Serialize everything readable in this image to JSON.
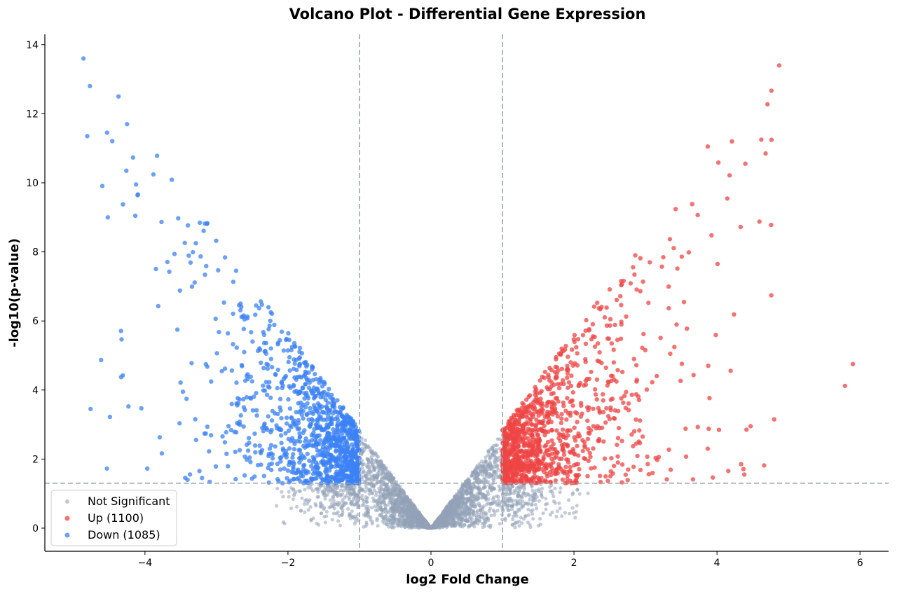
{
  "chart_data": {
    "type": "scatter",
    "title": "Volcano Plot - Differential Gene Expression",
    "xlabel": "log2 Fold Change",
    "ylabel": "-log10(p-value)",
    "xlim": [
      -5.4,
      6.4
    ],
    "ylim": [
      -0.67,
      14.3
    ],
    "xticks": [
      -4,
      -2,
      0,
      2,
      4,
      6
    ],
    "yticks": [
      0,
      2,
      4,
      6,
      8,
      10,
      12,
      14
    ],
    "grid": false,
    "legend_position": "lower-left",
    "thresholds": {
      "fold_change": [
        -1,
        1
      ],
      "neg_log10_p": 1.3
    },
    "series": [
      {
        "name": "Not Significant",
        "color": "#94a3b8",
        "outliers": []
      },
      {
        "name": "Up (1100)",
        "count": 1100,
        "color": "#ef4444",
        "outliers": [
          [
            4.87,
            13.4
          ],
          [
            4.21,
            11.2
          ],
          [
            4.62,
            11.25
          ],
          [
            4.68,
            10.85
          ],
          [
            3.87,
            11.05
          ],
          [
            5.9,
            4.75
          ],
          [
            5.79,
            4.12
          ],
          [
            4.8,
            3.15
          ],
          [
            4.47,
            2.95
          ],
          [
            3.87,
            2.3
          ]
        ]
      },
      {
        "name": "Down (1085)",
        "count": 1085,
        "color": "#3b82f6",
        "outliers": [
          [
            -4.86,
            13.6
          ],
          [
            -4.77,
            12.8
          ],
          [
            -4.37,
            12.5
          ],
          [
            -4.25,
            11.7
          ],
          [
            -4.53,
            11.45
          ],
          [
            -4.26,
            10.35
          ],
          [
            -4.52,
            9.0
          ],
          [
            -4.76,
            3.45
          ],
          [
            -4.49,
            3.22
          ],
          [
            -4.05,
            3.47
          ]
        ]
      }
    ]
  }
}
